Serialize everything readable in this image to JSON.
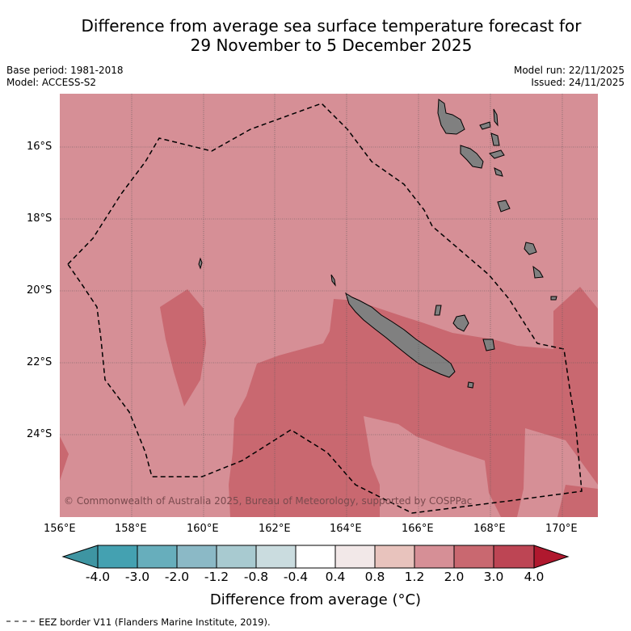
{
  "title": {
    "line1": "Difference from average sea surface temperature forecast for",
    "line2": "29 November to 5 December 2025"
  },
  "meta": {
    "base_period": "Base period: 1981-2018",
    "model": "Model: ACCESS-S2",
    "model_run": "Model run: 22/11/2025",
    "issued": "Issued: 24/11/2025"
  },
  "map": {
    "extent": {
      "lon_min": 156.0,
      "lon_max": 171.0,
      "lat_min": -26.0,
      "lat_max": -14.8
    },
    "lat_ticks": [
      {
        "value": -16,
        "label": "16°S"
      },
      {
        "value": -18,
        "label": "18°S"
      },
      {
        "value": -20,
        "label": "20°S"
      },
      {
        "value": -22,
        "label": "22°S"
      },
      {
        "value": -24,
        "label": "24°S"
      }
    ],
    "lon_ticks": [
      {
        "value": 156,
        "label": "156°E"
      },
      {
        "value": 158,
        "label": "158°E"
      },
      {
        "value": 160,
        "label": "160°E"
      },
      {
        "value": 162,
        "label": "162°E"
      },
      {
        "value": 164,
        "label": "164°E"
      },
      {
        "value": 166,
        "label": "166°E"
      },
      {
        "value": 168,
        "label": "168°E"
      },
      {
        "value": 170,
        "label": "170°E"
      }
    ],
    "background_anomaly_range": "1.2 to 2.0",
    "warmer_anomaly_range": "2.0 to 3.0",
    "credit": "© Commonwealth of Australia 2025, Bureau of Meteorology, supported by COSPPac"
  },
  "colors": {
    "anomaly_1_2_to_2": "#d68f96",
    "anomaly_2_to_3": "#c96870",
    "land": "#808080",
    "grid": "#555555"
  },
  "colorbar": {
    "colors": [
      "#3e95a2",
      "#44a1b1",
      "#67aebc",
      "#8bb9c6",
      "#a8cad0",
      "#cadcdf",
      "#ffffff",
      "#f2e8e8",
      "#e8c3bd",
      "#d68f96",
      "#c96870",
      "#bd4554",
      "#b0182e"
    ],
    "ticks": [
      "-4.0",
      "-3.0",
      "-2.0",
      "-1.2",
      "-0.8",
      "-0.4",
      "0.4",
      "0.8",
      "1.2",
      "2.0",
      "3.0",
      "4.0"
    ],
    "title": "Difference from average (°C)"
  },
  "legend": {
    "line_sample": "-- -- --",
    "text": "EEZ border V11 (Flanders Marine Institute, 2019)."
  }
}
